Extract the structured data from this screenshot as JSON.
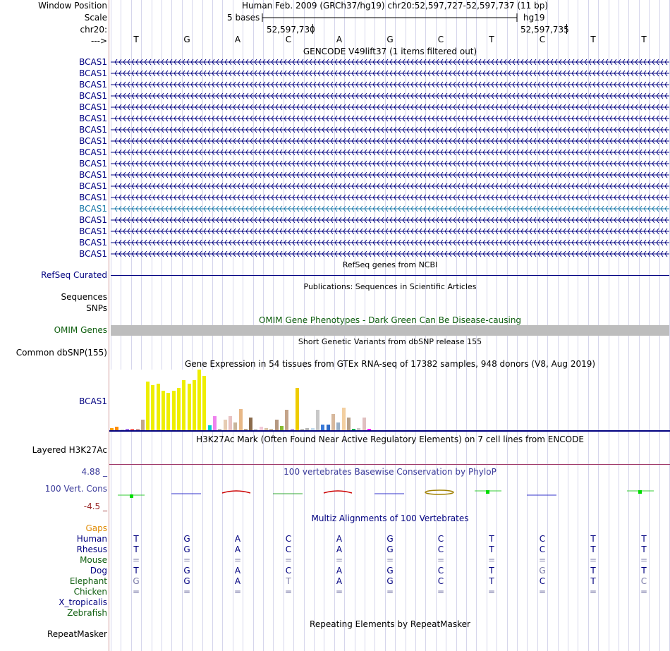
{
  "header": {
    "window_position_label": "Window Position",
    "assembly_text": "Human Feb. 2009 (GRCh37/hg19)   chr20:52,597,727-52,597,737 (11 bp)",
    "scale_label": "Scale",
    "scale_text": "5 bases",
    "scale_db": "hg19",
    "chrom_label": "chr20:",
    "coord_left": "52,597,730",
    "coord_right": "52,597,735",
    "strand_label": "--->"
  },
  "bases": [
    "T",
    "G",
    "A",
    "C",
    "A",
    "G",
    "C",
    "T",
    "C",
    "T",
    "T"
  ],
  "gencode": {
    "title": "GENCODE V49lift37 (1 items filtered out)",
    "rows": [
      {
        "label": "BCAS1",
        "highlight": false
      },
      {
        "label": "BCAS1",
        "highlight": false
      },
      {
        "label": "BCAS1",
        "highlight": false
      },
      {
        "label": "BCAS1",
        "highlight": false
      },
      {
        "label": "BCAS1",
        "highlight": false
      },
      {
        "label": "BCAS1",
        "highlight": false
      },
      {
        "label": "BCAS1",
        "highlight": false
      },
      {
        "label": "BCAS1",
        "highlight": false
      },
      {
        "label": "BCAS1",
        "highlight": false
      },
      {
        "label": "BCAS1",
        "highlight": false
      },
      {
        "label": "BCAS1",
        "highlight": false
      },
      {
        "label": "BCAS1",
        "highlight": false
      },
      {
        "label": "BCAS1",
        "highlight": false
      },
      {
        "label": "BCAS1",
        "highlight": true
      },
      {
        "label": "BCAS1",
        "highlight": false
      },
      {
        "label": "BCAS1",
        "highlight": false
      },
      {
        "label": "BCAS1",
        "highlight": false
      },
      {
        "label": "BCAS1",
        "highlight": false
      }
    ]
  },
  "refseq": {
    "title": "RefSeq genes from NCBI",
    "label": "RefSeq Curated"
  },
  "publications": {
    "title": "Publications: Sequences in Scientific Articles",
    "label_line1": "Sequences",
    "label_line2": "SNPs"
  },
  "omim": {
    "title": "OMIM Gene Phenotypes - Dark Green Can Be Disease-causing",
    "label": "OMIM Genes"
  },
  "dbsnp": {
    "title": "Short Genetic Variants from dbSNP release 155",
    "label": "Common dbSNP(155)"
  },
  "gtex": {
    "title": "Gene Expression in 54 tissues from GTEx RNA-seq of 17382 samples, 948 donors (V8, Aug 2019)",
    "label": "BCAS1",
    "bars": [
      {
        "v": 4,
        "c": "#ff9a00"
      },
      {
        "v": 6,
        "c": "#ff8c00"
      },
      {
        "v": 1,
        "c": "#c7c7c7"
      },
      {
        "v": 2,
        "c": "#9e6ee6"
      },
      {
        "v": 3,
        "c": "#ff6666"
      },
      {
        "v": 2,
        "c": "#cc9999"
      },
      {
        "v": 20,
        "c": "#c2a78a"
      },
      {
        "v": 92,
        "c": "#eeee00"
      },
      {
        "v": 85,
        "c": "#eeee00"
      },
      {
        "v": 88,
        "c": "#eeee00"
      },
      {
        "v": 74,
        "c": "#eeee00"
      },
      {
        "v": 70,
        "c": "#eeee00"
      },
      {
        "v": 74,
        "c": "#eeee00"
      },
      {
        "v": 80,
        "c": "#eeee00"
      },
      {
        "v": 95,
        "c": "#eeee00"
      },
      {
        "v": 88,
        "c": "#eeee00"
      },
      {
        "v": 94,
        "c": "#eeee00"
      },
      {
        "v": 114,
        "c": "#eeee00"
      },
      {
        "v": 102,
        "c": "#eeee00"
      },
      {
        "v": 9,
        "c": "#00cccc"
      },
      {
        "v": 26,
        "c": "#ee82ee"
      },
      {
        "v": 2,
        "c": "#b9b9b9"
      },
      {
        "v": 20,
        "c": "#e6ccb3"
      },
      {
        "v": 26,
        "c": "#e8c2c2"
      },
      {
        "v": 14,
        "c": "#c8b49a"
      },
      {
        "v": 40,
        "c": "#e8b887"
      },
      {
        "v": 2,
        "c": "#b5a590"
      },
      {
        "v": 24,
        "c": "#8b6b4c"
      },
      {
        "v": 3,
        "c": "#c9c9c9"
      },
      {
        "v": 7,
        "c": "#f2c9d9"
      },
      {
        "v": 4,
        "c": "#d7c2a8"
      },
      {
        "v": 2,
        "c": "#c6b49c"
      },
      {
        "v": 20,
        "c": "#b59880"
      },
      {
        "v": 8,
        "c": "#88bb33"
      },
      {
        "v": 38,
        "c": "#c4a48a"
      },
      {
        "v": 3,
        "c": "#b99fd4"
      },
      {
        "v": 80,
        "c": "#eecc00"
      },
      {
        "v": 2,
        "c": "#bbbbbb"
      },
      {
        "v": 4,
        "c": "#b4b4b4"
      },
      {
        "v": 4,
        "c": "#c1d9ec"
      },
      {
        "v": 38,
        "c": "#c8c8c8"
      },
      {
        "v": 10,
        "c": "#3a7ad9"
      },
      {
        "v": 10,
        "c": "#2e6bc8"
      },
      {
        "v": 30,
        "c": "#d7b89c"
      },
      {
        "v": 14,
        "c": "#9ab0c7"
      },
      {
        "v": 42,
        "c": "#f3cfa0"
      },
      {
        "v": 24,
        "c": "#b8a088"
      },
      {
        "v": 2,
        "c": "#00aa55"
      },
      {
        "v": 4,
        "c": "#c7c7c7"
      },
      {
        "v": 24,
        "c": "#e0c0c0"
      },
      {
        "v": 2,
        "c": "#ff00ff"
      }
    ]
  },
  "h3k27ac": {
    "title": "H3K27Ac Mark (Often Found Near Active Regulatory Elements) on 7 cell lines from ENCODE",
    "label": "Layered H3K27Ac"
  },
  "conservation": {
    "title": "100 vertebrates Basewise Conservation by PhyloP",
    "label": "100 Vert. Cons",
    "max_label": "4.88 _",
    "min_label": "-4.5 _"
  },
  "multiz": {
    "title": "Multiz Alignments of 100 Vertebrates",
    "gaps_label": "Gaps",
    "species": [
      {
        "name": "Human",
        "color": "#000080",
        "bases": [
          "T",
          "G",
          "A",
          "C",
          "A",
          "G",
          "C",
          "T",
          "C",
          "T",
          "T"
        ]
      },
      {
        "name": "Rhesus",
        "color": "#000080",
        "bases": [
          "T",
          "G",
          "A",
          "C",
          "A",
          "G",
          "C",
          "T",
          "C",
          "T",
          "T"
        ]
      },
      {
        "name": "Mouse",
        "color": "#0e5e0e",
        "bases": [
          "=",
          "=",
          "=",
          "=",
          "=",
          "=",
          "=",
          "=",
          "=",
          "=",
          "="
        ]
      },
      {
        "name": "Dog",
        "color": "#000080",
        "bases": [
          "T",
          "G",
          "A",
          "C",
          "A",
          "G",
          "C",
          "T",
          "G",
          "T",
          "T"
        ]
      },
      {
        "name": "Elephant",
        "color": "#0e5e0e",
        "bases": [
          "G",
          "G",
          "A",
          "T",
          "A",
          "G",
          "C",
          "T",
          "C",
          "T",
          "C"
        ]
      },
      {
        "name": "Chicken",
        "color": "#0e5e0e",
        "bases": [
          "=",
          "=",
          "=",
          "=",
          "=",
          "=",
          "=",
          "=",
          "=",
          "=",
          "="
        ]
      },
      {
        "name": "X_tropicalis",
        "color": "#000080",
        "bases": [
          "",
          "",
          "",
          "",
          "",
          "",
          "",
          "",
          "",
          "",
          ""
        ]
      },
      {
        "name": "Zebrafish",
        "color": "#0e5e0e",
        "bases": [
          "",
          "",
          "",
          "",
          "",
          "",
          "",
          "",
          "",
          "",
          ""
        ]
      }
    ]
  },
  "repeatmasker": {
    "title": "Repeating Elements by RepeatMasker",
    "label": "RepeatMasker"
  }
}
